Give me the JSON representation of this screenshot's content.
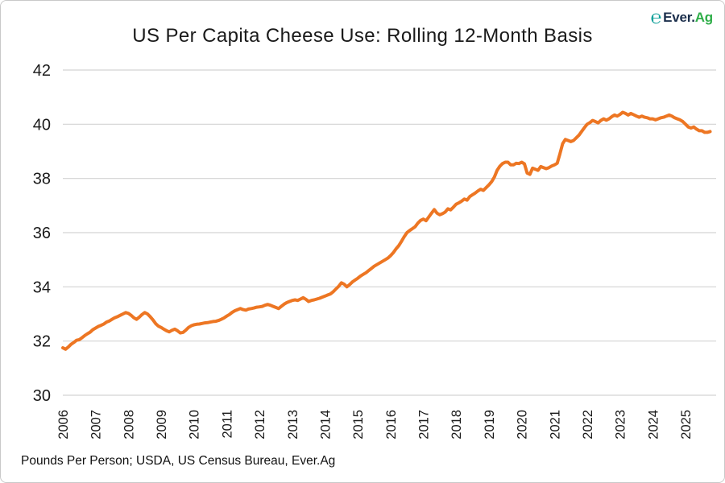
{
  "header": {
    "title": "US Per Capita Cheese Use: Rolling 12-Month Basis"
  },
  "logo": {
    "icon": "everag-e-swoosh",
    "icon_color": "#12A19A",
    "ever": "Ever.",
    "ever_color": "#1C2F4C",
    "ag": "Ag",
    "ag_color": "#2FAE49"
  },
  "footer": {
    "source": "Pounds Per Person; USDA, US Census Bureau, Ever.Ag"
  },
  "chart_data": {
    "type": "line",
    "title": "US Per Capita Cheese Use: Rolling 12-Month Basis",
    "ylabel": "Pounds Per Person",
    "series_name": "US per capita cheese use, rolling 12-month",
    "line_color": "#ED7623",
    "grid_color": "#D3D3D3",
    "grid": true,
    "legend": false,
    "ylim": [
      30,
      42
    ],
    "yticks": [
      42,
      40,
      38,
      36,
      34,
      32,
      30
    ],
    "xticks": [
      2006,
      2007,
      2008,
      2009,
      2010,
      2011,
      2012,
      2013,
      2014,
      2015,
      2016,
      2017,
      2018,
      2019,
      2020,
      2021,
      2022,
      2023,
      2024,
      2025
    ],
    "frequency": "monthly",
    "x_start": {
      "year": 2006,
      "month": 1
    },
    "x_end": {
      "year": 2025,
      "month": 10
    },
    "values": [
      31.75,
      31.7,
      31.78,
      31.88,
      31.95,
      32.03,
      32.05,
      32.12,
      32.2,
      32.27,
      32.33,
      32.42,
      32.48,
      32.54,
      32.58,
      32.63,
      32.7,
      32.74,
      32.8,
      32.86,
      32.9,
      32.95,
      33.0,
      33.05,
      33.02,
      32.95,
      32.86,
      32.8,
      32.88,
      32.98,
      33.05,
      33.0,
      32.9,
      32.78,
      32.64,
      32.55,
      32.5,
      32.44,
      32.38,
      32.34,
      32.4,
      32.44,
      32.38,
      32.3,
      32.32,
      32.4,
      32.5,
      32.56,
      32.6,
      32.62,
      32.63,
      32.65,
      32.67,
      32.68,
      32.7,
      32.72,
      32.73,
      32.76,
      32.8,
      32.85,
      32.92,
      32.98,
      33.06,
      33.12,
      33.16,
      33.2,
      33.16,
      33.14,
      33.18,
      33.2,
      33.22,
      33.25,
      33.26,
      33.28,
      33.32,
      33.35,
      33.32,
      33.28,
      33.24,
      33.2,
      33.28,
      33.36,
      33.42,
      33.46,
      33.5,
      33.52,
      33.5,
      33.55,
      33.6,
      33.54,
      33.46,
      33.5,
      33.52,
      33.55,
      33.58,
      33.62,
      33.66,
      33.7,
      33.74,
      33.82,
      33.92,
      34.02,
      34.15,
      34.1,
      34.0,
      34.08,
      34.18,
      34.25,
      34.32,
      34.4,
      34.46,
      34.52,
      34.6,
      34.68,
      34.76,
      34.82,
      34.88,
      34.94,
      35.0,
      35.06,
      35.15,
      35.26,
      35.4,
      35.52,
      35.68,
      35.85,
      36.0,
      36.08,
      36.15,
      36.22,
      36.35,
      36.45,
      36.5,
      36.44,
      36.58,
      36.72,
      36.85,
      36.72,
      36.66,
      36.7,
      36.76,
      36.88,
      36.84,
      36.94,
      37.05,
      37.1,
      37.16,
      37.24,
      37.2,
      37.33,
      37.4,
      37.46,
      37.54,
      37.6,
      37.56,
      37.66,
      37.76,
      37.88,
      38.05,
      38.3,
      38.45,
      38.55,
      38.6,
      38.6,
      38.5,
      38.5,
      38.56,
      38.55,
      38.6,
      38.54,
      38.2,
      38.15,
      38.38,
      38.34,
      38.3,
      38.44,
      38.4,
      38.36,
      38.4,
      38.46,
      38.5,
      38.56,
      38.9,
      39.28,
      39.44,
      39.4,
      39.36,
      39.4,
      39.5,
      39.6,
      39.74,
      39.88,
      40.0,
      40.06,
      40.14,
      40.1,
      40.05,
      40.14,
      40.2,
      40.15,
      40.2,
      40.28,
      40.34,
      40.3,
      40.36,
      40.44,
      40.4,
      40.34,
      40.4,
      40.35,
      40.3,
      40.26,
      40.3,
      40.26,
      40.24,
      40.2,
      40.2,
      40.16,
      40.2,
      40.24,
      40.26,
      40.3,
      40.34,
      40.3,
      40.24,
      40.2,
      40.16,
      40.1,
      40.0,
      39.9,
      39.86,
      39.9,
      39.82,
      39.76,
      39.76,
      39.7,
      39.7,
      39.73
    ]
  }
}
